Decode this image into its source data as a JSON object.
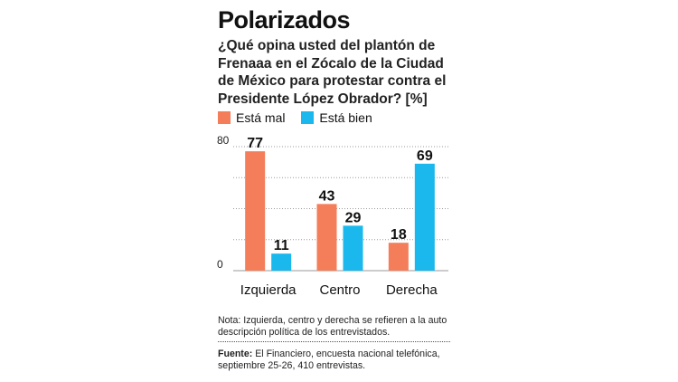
{
  "title": "Polarizados",
  "question": "¿Qué opina usted del plantón de Frenaaa en el Zócalo de la Ciudad de México para protestar contra el Presidente López Obrador? [%]",
  "colors": {
    "esta_mal": "#f47d5a",
    "esta_bien": "#1ab8ec"
  },
  "chart_data": {
    "type": "bar",
    "categories": [
      "Izquierda",
      "Centro",
      "Derecha"
    ],
    "series": [
      {
        "name": "Está mal",
        "values": [
          77,
          43,
          18
        ]
      },
      {
        "name": "Está bien",
        "values": [
          11,
          29,
          69
        ]
      }
    ],
    "ylim": [
      0,
      80
    ],
    "yticks": [
      "0",
      "80"
    ],
    "grid": true,
    "legend": "top-left",
    "units": "%"
  },
  "note": "Nota: Izquierda, centro y derecha se refieren a la auto descripción política de los entrevistados.",
  "source": {
    "label": "Fuente:",
    "text": " El Financiero, encuesta nacional telefónica, septiembre 25-26, 410 entrevistas."
  }
}
